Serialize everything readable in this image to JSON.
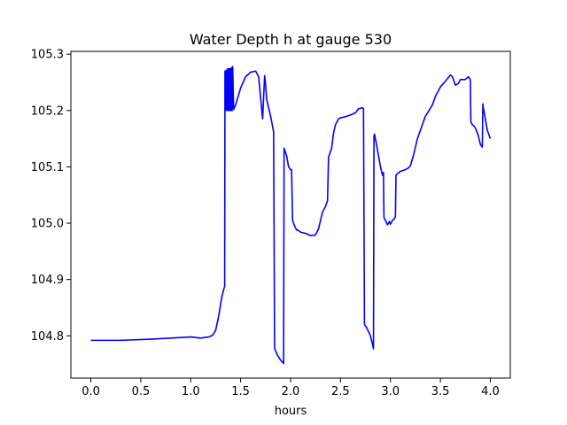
{
  "chart_data": {
    "type": "line",
    "title": "Water Depth h at gauge 530",
    "xlabel": "hours",
    "ylabel": "",
    "xlim": [
      -0.2,
      4.2
    ],
    "ylim": [
      104.725,
      105.305
    ],
    "xticks": [
      0.0,
      0.5,
      1.0,
      1.5,
      2.0,
      2.5,
      3.0,
      3.5,
      4.0
    ],
    "xtick_labels": [
      "0.0",
      "0.5",
      "1.0",
      "1.5",
      "2.0",
      "2.5",
      "3.0",
      "3.5",
      "4.0"
    ],
    "yticks": [
      104.8,
      104.9,
      105.0,
      105.1,
      105.2,
      105.3
    ],
    "ytick_labels": [
      "104.8",
      "104.9",
      "105.0",
      "105.1",
      "105.2",
      "105.3"
    ],
    "grid": false,
    "legend": "none",
    "series": [
      {
        "color": "#0000ff",
        "x": [
          0.0,
          0.3,
          0.6,
          0.8,
          1.0,
          1.1,
          1.18,
          1.22,
          1.25,
          1.28,
          1.31,
          1.33,
          1.34,
          1.343,
          1.347,
          1.355,
          1.362,
          1.37,
          1.375,
          1.38,
          1.385,
          1.39,
          1.395,
          1.4,
          1.405,
          1.41,
          1.415,
          1.42,
          1.43,
          1.45,
          1.5,
          1.55,
          1.6,
          1.65,
          1.68,
          1.72,
          1.74,
          1.75,
          1.76,
          1.8,
          1.83,
          1.84,
          1.87,
          1.9,
          1.93,
          1.935,
          1.94,
          1.96,
          1.98,
          2.0,
          2.01,
          2.02,
          2.03,
          2.04,
          2.06,
          2.08,
          2.1,
          2.15,
          2.2,
          2.25,
          2.28,
          2.32,
          2.35,
          2.37,
          2.38,
          2.39,
          2.4,
          2.41,
          2.43,
          2.45,
          2.48,
          2.5,
          2.55,
          2.6,
          2.65,
          2.68,
          2.72,
          2.73,
          2.74,
          2.76,
          2.8,
          2.82,
          2.83,
          2.835,
          2.84,
          2.86,
          2.88,
          2.9,
          2.92,
          2.93,
          2.935,
          2.95,
          2.97,
          2.99,
          3.0,
          3.02,
          3.04,
          3.05,
          3.055,
          3.07,
          3.1,
          3.15,
          3.18,
          3.2,
          3.23,
          3.27,
          3.3,
          3.35,
          3.38,
          3.42,
          3.45,
          3.5,
          3.55,
          3.6,
          3.62,
          3.65,
          3.68,
          3.7,
          3.75,
          3.78,
          3.8,
          3.805,
          3.81,
          3.82,
          3.84,
          3.86,
          3.88,
          3.9,
          3.92,
          3.925,
          3.93,
          3.95,
          3.97,
          4.0
        ],
        "y": [
          104.792,
          104.792,
          104.794,
          104.796,
          104.798,
          104.796,
          104.798,
          104.801,
          104.81,
          104.835,
          104.868,
          104.882,
          104.888,
          105.27,
          105.2,
          105.272,
          105.2,
          105.274,
          105.2,
          105.274,
          105.2,
          105.274,
          105.2,
          105.275,
          105.2,
          105.276,
          105.2,
          105.278,
          105.202,
          105.21,
          105.24,
          105.26,
          105.268,
          105.27,
          105.26,
          105.185,
          105.262,
          105.245,
          105.22,
          105.19,
          105.162,
          104.778,
          104.765,
          104.757,
          104.751,
          105.133,
          105.13,
          105.12,
          105.1,
          105.095,
          105.095,
          105.005,
          105.0,
          104.995,
          104.988,
          104.987,
          104.984,
          104.982,
          104.978,
          104.979,
          104.99,
          105.02,
          105.03,
          105.04,
          105.118,
          105.122,
          105.128,
          105.132,
          105.16,
          105.175,
          105.185,
          105.187,
          105.189,
          105.192,
          105.196,
          105.203,
          105.205,
          105.203,
          104.82,
          104.815,
          104.8,
          104.785,
          104.777,
          105.155,
          105.158,
          105.14,
          105.12,
          105.1,
          105.085,
          105.09,
          105.01,
          105.005,
          104.997,
          105.003,
          104.998,
          105.005,
          105.008,
          105.012,
          105.085,
          105.088,
          105.092,
          105.095,
          105.098,
          105.102,
          105.12,
          105.15,
          105.165,
          105.19,
          105.198,
          105.21,
          105.225,
          105.242,
          105.252,
          105.263,
          105.26,
          105.245,
          105.248,
          105.255,
          105.255,
          105.26,
          105.255,
          105.18,
          105.178,
          105.175,
          105.172,
          105.165,
          105.155,
          105.14,
          105.135,
          105.212,
          105.205,
          105.185,
          105.165,
          105.15
        ]
      }
    ]
  }
}
